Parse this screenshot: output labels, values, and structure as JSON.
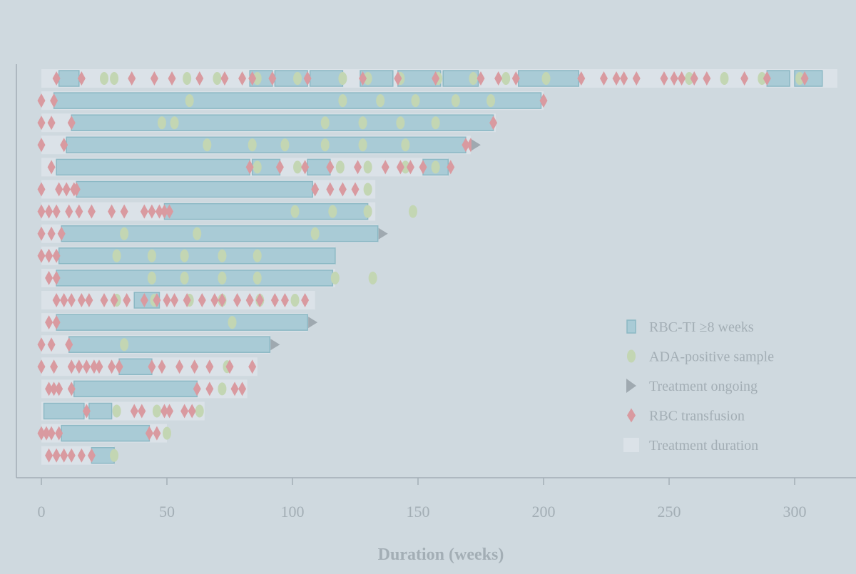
{
  "chart_data": {
    "type": "swimmer",
    "xlabel": "Duration (weeks)",
    "xlim": [
      0,
      320
    ],
    "x_ticks": [
      0,
      50,
      100,
      150,
      200,
      250,
      300
    ],
    "legend": {
      "placement": "bottom-right",
      "items": [
        {
          "kind": "rbc_ti",
          "label": "RBC-TI ≥8 weeks"
        },
        {
          "kind": "ada",
          "label": "ADA-positive sample"
        },
        {
          "kind": "ongoing",
          "label": "Treatment ongoing"
        },
        {
          "kind": "transfusion",
          "label": "RBC transfusion"
        },
        {
          "kind": "duration",
          "label": "Treatment duration"
        }
      ]
    },
    "colors": {
      "background": "#cfd9df",
      "duration": "#dbe2e8",
      "rbc_ti_fill": "#a9cbd6",
      "rbc_ti_edge": "#8bb8c4",
      "ada": "#c3d6b3",
      "transfusion": "#d99aa0",
      "ongoing": "#9fa9b0",
      "axis": "#a3aeb5",
      "text": "#a3aeb5"
    },
    "patients": [
      {
        "duration": 317,
        "rbc_ti": [
          [
            7,
            15
          ],
          [
            83,
            92
          ],
          [
            93,
            106
          ],
          [
            107,
            120
          ],
          [
            127,
            140
          ],
          [
            142,
            159
          ],
          [
            160,
            174
          ],
          [
            190,
            214
          ],
          [
            289,
            298
          ],
          [
            300,
            311
          ]
        ],
        "ada": [
          25,
          29,
          58,
          70,
          86,
          102,
          120,
          130,
          143,
          158,
          172,
          185,
          201,
          258,
          272,
          287,
          302
        ],
        "transfusion": [
          6,
          16,
          36,
          45,
          52,
          63,
          73,
          80,
          84,
          92,
          106,
          128,
          142,
          157,
          175,
          182,
          189,
          215,
          224,
          229,
          232,
          237,
          248,
          252,
          255,
          260,
          265,
          280,
          289,
          304
        ],
        "ongoing": false
      },
      {
        "duration": 200,
        "rbc_ti": [
          [
            5,
            199
          ]
        ],
        "ada": [
          59,
          120,
          135,
          149,
          165,
          179
        ],
        "transfusion": [
          0,
          5,
          200
        ],
        "ongoing": false
      },
      {
        "duration": 181,
        "rbc_ti": [
          [
            12,
            180
          ]
        ],
        "ada": [
          48,
          53,
          113,
          128,
          143,
          157
        ],
        "transfusion": [
          0,
          4,
          12,
          180
        ],
        "ongoing": false
      },
      {
        "duration": 171,
        "rbc_ti": [
          [
            10,
            169
          ]
        ],
        "ada": [
          66,
          84,
          97,
          113,
          128,
          145
        ],
        "transfusion": [
          0,
          9,
          169,
          171
        ],
        "ongoing": true
      },
      {
        "duration": 162,
        "rbc_ti": [
          [
            6,
            83
          ],
          [
            84,
            95
          ],
          [
            106,
            115
          ],
          [
            152,
            162
          ]
        ],
        "ada": [
          86,
          102,
          119,
          130,
          145,
          157
        ],
        "transfusion": [
          4,
          83,
          95,
          105,
          115,
          126,
          137,
          143,
          147,
          152,
          163
        ],
        "ongoing": false
      },
      {
        "duration": 133,
        "rbc_ti": [
          [
            14,
            108
          ]
        ],
        "ada": [
          130
        ],
        "transfusion": [
          0,
          7,
          10,
          13,
          14,
          109,
          115,
          120,
          125
        ],
        "ongoing": false
      },
      {
        "duration": 133,
        "rbc_ti": [
          [
            49,
            130
          ]
        ],
        "ada": [
          101,
          116,
          130,
          148
        ],
        "transfusion": [
          0,
          3,
          6,
          11,
          15,
          20,
          28,
          33,
          41,
          44,
          47,
          49,
          51
        ],
        "ongoing": false
      },
      {
        "duration": 134,
        "rbc_ti": [
          [
            8,
            134
          ]
        ],
        "ada": [
          33,
          62,
          109
        ],
        "transfusion": [
          0,
          4,
          8
        ],
        "ongoing": true
      },
      {
        "duration": 117,
        "rbc_ti": [
          [
            7,
            117
          ]
        ],
        "ada": [
          30,
          44,
          57,
          72,
          86
        ],
        "transfusion": [
          0,
          3,
          6
        ],
        "ongoing": false
      },
      {
        "duration": 117,
        "rbc_ti": [
          [
            6,
            116
          ]
        ],
        "ada": [
          44,
          57,
          72,
          86,
          117,
          132
        ],
        "transfusion": [
          3,
          6
        ],
        "ongoing": false
      },
      {
        "duration": 109,
        "rbc_ti": [
          [
            37,
            47
          ]
        ],
        "ada": [
          30,
          45,
          59,
          72,
          87,
          101
        ],
        "transfusion": [
          6,
          9,
          12,
          16,
          19,
          25,
          29,
          34,
          41,
          46,
          50,
          53,
          58,
          64,
          69,
          72,
          78,
          83,
          87,
          93,
          97,
          105
        ],
        "ongoing": false
      },
      {
        "duration": 106,
        "rbc_ti": [
          [
            6,
            106
          ]
        ],
        "ada": [
          76
        ],
        "transfusion": [
          3,
          6
        ],
        "ongoing": true
      },
      {
        "duration": 91,
        "rbc_ti": [
          [
            11,
            91
          ]
        ],
        "ada": [
          33
        ],
        "transfusion": [
          0,
          4,
          11
        ],
        "ongoing": true
      },
      {
        "duration": 86,
        "rbc_ti": [
          [
            31,
            44
          ]
        ],
        "ada": [
          74
        ],
        "transfusion": [
          0,
          5,
          12,
          15,
          18,
          21,
          23,
          28,
          31,
          44,
          48,
          55,
          61,
          67,
          75,
          84
        ],
        "ongoing": false
      },
      {
        "duration": 82,
        "rbc_ti": [
          [
            13,
            62
          ]
        ],
        "ada": [
          72
        ],
        "transfusion": [
          3,
          5,
          7,
          12,
          62,
          67,
          77,
          80
        ],
        "ongoing": false
      },
      {
        "duration": 65,
        "rbc_ti": [
          [
            1,
            17
          ],
          [
            19,
            28
          ]
        ],
        "ada": [
          30,
          46,
          63
        ],
        "transfusion": [
          18,
          37,
          40,
          49,
          51,
          57,
          60
        ],
        "ongoing": false
      },
      {
        "duration": 50,
        "rbc_ti": [
          [
            8,
            43
          ]
        ],
        "ada": [
          50
        ],
        "transfusion": [
          0,
          2,
          4,
          7,
          43,
          46
        ],
        "ongoing": false
      },
      {
        "duration": 29,
        "rbc_ti": [
          [
            20,
            29
          ]
        ],
        "ada": [
          29
        ],
        "transfusion": [
          3,
          6,
          9,
          12,
          16,
          20
        ],
        "ongoing": false
      }
    ]
  }
}
